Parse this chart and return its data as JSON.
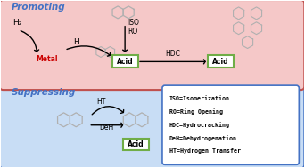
{
  "promoting_label": "Promoting",
  "suppressing_label": "Suppressing",
  "promoting_bg": "#f5c8c8",
  "suppressing_bg": "#c8ddf5",
  "promoting_border": "#c0504d",
  "suppressing_border": "#4472c4",
  "promoting_label_color": "#4472c4",
  "suppressing_label_color": "#4472c4",
  "metal_label": "Metal",
  "metal_color": "#cc0000",
  "acid_border_color": "#70ad47",
  "h2_label": "H₂",
  "h_label": "H",
  "iso_ro_label": "ISO\nRO",
  "hdc_label": "HDC",
  "ht_label": "HT",
  "deh_label": "DeH",
  "legend_lines": [
    "ISO=Isomerization",
    "RO=Ring Opening",
    "HDC=Hydrocracking",
    "DeH=Dehydrogenation",
    "HT=Hydrogen Transfer"
  ],
  "legend_bg": "#ffffff",
  "legend_border": "#4472c4",
  "mol_color": "#b0b0b0",
  "arrow_color": "#000000"
}
